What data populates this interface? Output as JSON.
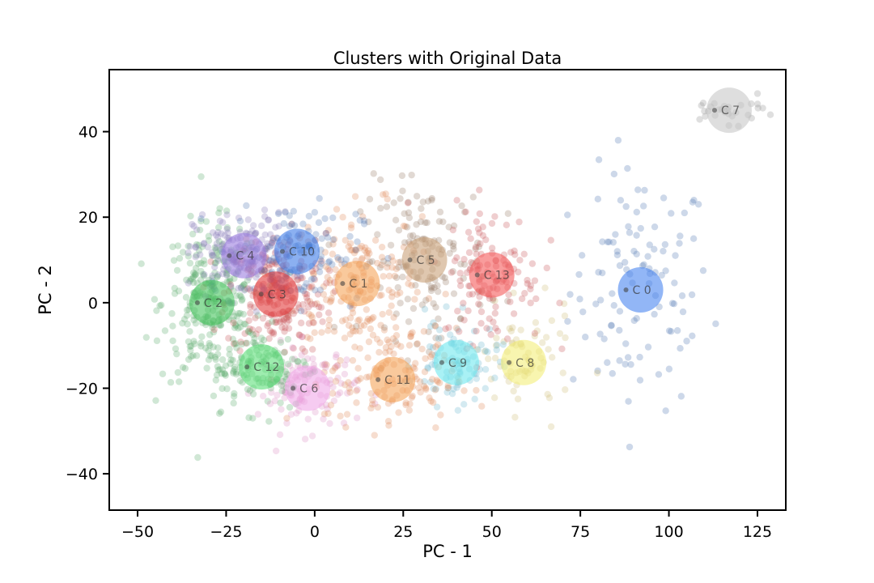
{
  "chart_data": {
    "type": "scatter",
    "title": "Clusters with Original Data",
    "xlabel": "PC - 1",
    "ylabel": "PC - 2",
    "xlim": [
      -58,
      133
    ],
    "ylim": [
      -48.5,
      54.5
    ],
    "xticks": [
      -50,
      -25,
      0,
      25,
      50,
      75,
      100,
      125
    ],
    "yticks": [
      -40,
      -20,
      0,
      20,
      40
    ],
    "xtick_labels": [
      "−50",
      "−25",
      "0",
      "25",
      "50",
      "75",
      "100",
      "125"
    ],
    "ytick_labels": [
      "−40",
      "−20",
      "0",
      "20",
      "40"
    ],
    "grid": false,
    "legend": "none",
    "clusters": [
      {
        "label": "C 0",
        "cx": 92,
        "cy": 3,
        "color": "#4a86f0",
        "spread": [
          10,
          14
        ],
        "n": 110
      },
      {
        "label": "C 1",
        "cx": 12,
        "cy": 4.5,
        "color": "#f5a55a",
        "spread": [
          9,
          9
        ],
        "n": 190
      },
      {
        "label": "C 2",
        "cx": -29,
        "cy": 0,
        "color": "#46c45e",
        "spread": [
          7,
          9
        ],
        "n": 270
      },
      {
        "label": "C 3",
        "cx": -11,
        "cy": 2,
        "color": "#e23b3b",
        "spread": [
          7,
          7
        ],
        "n": 220
      },
      {
        "label": "C 4",
        "cx": -20,
        "cy": 11,
        "color": "#9b7de0",
        "spread": [
          7,
          5
        ],
        "n": 170
      },
      {
        "label": "C 5",
        "cx": 31,
        "cy": 10,
        "color": "#c9a27a",
        "spread": [
          9,
          9
        ],
        "n": 150
      },
      {
        "label": "C 6",
        "cx": -2,
        "cy": -20,
        "color": "#f0a9e8",
        "spread": [
          7,
          5
        ],
        "n": 110
      },
      {
        "label": "C 7",
        "cx": 117,
        "cy": 45,
        "color": "#c8c8c8",
        "spread": [
          7,
          1.5
        ],
        "n": 30
      },
      {
        "label": "C 8",
        "cx": 59,
        "cy": -14,
        "color": "#f3ee7a",
        "spread": [
          7,
          6
        ],
        "n": 75
      },
      {
        "label": "C 9",
        "cx": 40,
        "cy": -14,
        "color": "#6fe8ef",
        "spread": [
          6,
          5
        ],
        "n": 85
      },
      {
        "label": "C 10",
        "cx": -5,
        "cy": 12,
        "color": "#3d7be8",
        "spread": [
          9,
          6
        ],
        "n": 110
      },
      {
        "label": "C 11",
        "cx": 22,
        "cy": -18,
        "color": "#f5a55a",
        "spread": [
          9,
          6
        ],
        "n": 130
      },
      {
        "label": "C 12",
        "cx": -15,
        "cy": -15,
        "color": "#5ee07a",
        "spread": [
          7,
          5
        ],
        "n": 130
      },
      {
        "label": "C 13",
        "cx": 50,
        "cy": 6.5,
        "color": "#f55a5a",
        "spread": [
          7,
          8
        ],
        "n": 130
      }
    ],
    "point_colors": {
      "C 0": "#4c72b0",
      "C 1": "#dd8452",
      "C 2": "#55a868",
      "C 3": "#c44e52",
      "C 4": "#8172b3",
      "C 5": "#937860",
      "C 6": "#da8bc3",
      "C 7": "#8c8c8c",
      "C 8": "#ccb974",
      "C 9": "#64b5cd",
      "C 10": "#4c72b0",
      "C 11": "#dd8452",
      "C 12": "#55a868",
      "C 13": "#c44e52"
    }
  }
}
